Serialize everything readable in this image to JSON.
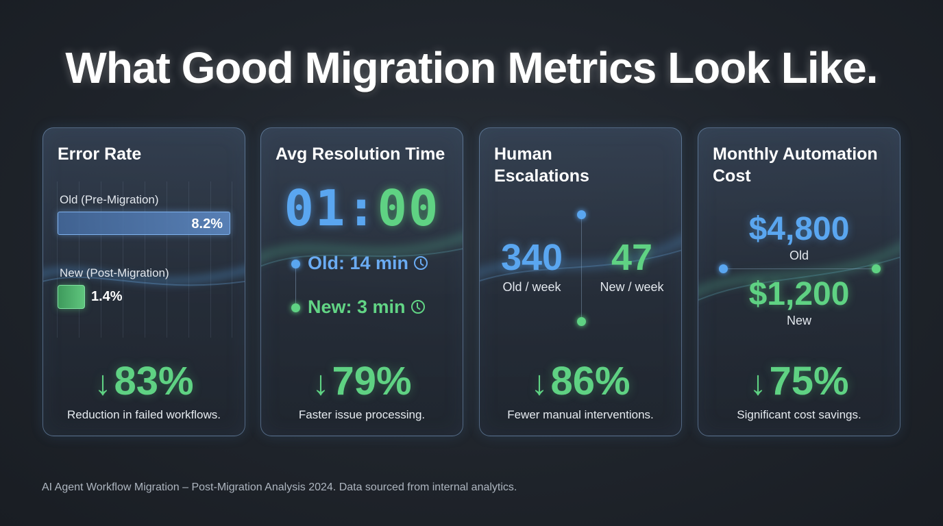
{
  "title": "What Good Migration Metrics Look Like.",
  "colors": {
    "blue": "#5aa6f0",
    "green": "#5fd283",
    "background": "#1f242b"
  },
  "cards": [
    {
      "title": "Error Rate",
      "old_label": "Old (Pre-Migration)",
      "old_value": "8.2%",
      "new_label": "New (Post-Migration)",
      "new_value": "1.4%",
      "arrow": "↓",
      "change": "83%",
      "caption": "Reduction in failed workflows."
    },
    {
      "title": "Avg Resolution Time",
      "clock_left": "01",
      "clock_sep": ":",
      "clock_right": "00",
      "old_text": "Old: 14 min",
      "new_text": "New: 3 min",
      "arrow": "↓",
      "change": "79%",
      "caption": "Faster issue processing."
    },
    {
      "title_line1": "Human",
      "title_line2": "Escalations",
      "old_value": "340",
      "old_label": "Old / week",
      "new_value": "47",
      "new_label": "New / week",
      "arrow": "↓",
      "change": "86%",
      "caption": "Fewer manual interventions."
    },
    {
      "title_line1": "Monthly Automation",
      "title_line2": "Cost",
      "old_value": "$4,800",
      "old_label": "Old",
      "new_value": "$1,200",
      "new_label": "New",
      "arrow": "↓",
      "change": "75%",
      "caption": "Significant cost savings."
    }
  ],
  "footer": "AI Agent Workflow Migration – Post-Migration Analysis 2024. Data sourced from internal analytics."
}
